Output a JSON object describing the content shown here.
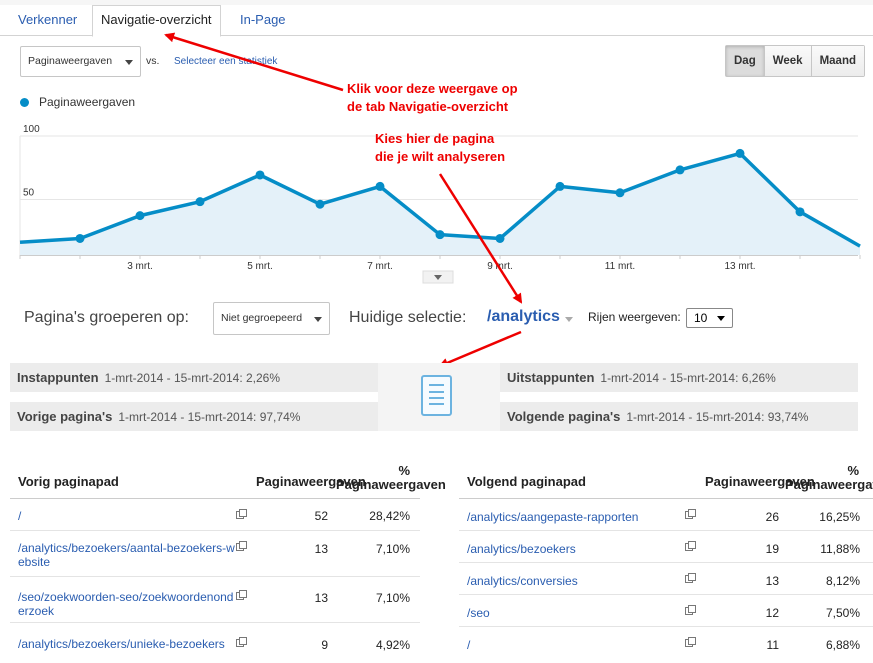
{
  "tabs": [
    {
      "label": "Verkenner"
    },
    {
      "label": "Navigatie-overzicht"
    },
    {
      "label": "In-Page"
    }
  ],
  "controls": {
    "metric_select": "Paginaweergaven",
    "vs": "vs.",
    "select_stat": "Selecteer een statistiek",
    "periods": [
      "Dag",
      "Week",
      "Maand"
    ],
    "active_period": "Dag"
  },
  "legend_label": "Paginaweergaven",
  "colors": {
    "series": "#058dc7",
    "annotation": "#e00000",
    "link": "#2a5db0"
  },
  "chart_data": {
    "type": "area",
    "x": [
      "1 mrt.",
      "2 mrt.",
      "3 mrt.",
      "4 mrt.",
      "5 mrt.",
      "6 mrt.",
      "7 mrt.",
      "8 mrt.",
      "9 mrt.",
      "10 mrt.",
      "11 mrt.",
      "12 mrt.",
      "13 mrt.",
      "14 mrt.",
      "15 mrt."
    ],
    "y_tick_labels": [
      "100",
      "50"
    ],
    "x_tick_labels": [
      "3 mrt.",
      "5 mrt.",
      "7 mrt.",
      "9 mrt.",
      "11 mrt.",
      "13 mrt."
    ],
    "series": [
      {
        "values": [
          10,
          13,
          31,
          42,
          63,
          40,
          54,
          16,
          13,
          54,
          49,
          67,
          80,
          34,
          7
        ]
      }
    ],
    "ylim": [
      0,
      100
    ],
    "grid": true
  },
  "annotations": {
    "tab_note_1": "Klik voor deze weergave op",
    "tab_note_2": "de tab Navigatie-overzicht",
    "page_note_1": "Kies hier de pagina",
    "page_note_2": "die je wilt analyseren"
  },
  "grouping": {
    "label": "Pagina's groeperen op:",
    "select": "Niet gegroepeerd",
    "current_label": "Huidige selectie:",
    "current_value": "/analytics",
    "rows_label": "Rijen weergeven:",
    "rows_value": "10"
  },
  "flow": {
    "entrances": {
      "label": "Instappunten",
      "detail": "1-mrt-2014 - 15-mrt-2014: 2,26%"
    },
    "previous": {
      "label": "Vorige pagina's",
      "detail": "1-mrt-2014 - 15-mrt-2014: 97,74%"
    },
    "exits": {
      "label": "Uitstappunten",
      "detail": "1-mrt-2014 - 15-mrt-2014: 6,26%"
    },
    "next": {
      "label": "Volgende pagina's",
      "detail": "1-mrt-2014 - 15-mrt-2014: 93,74%"
    }
  },
  "prev_table": {
    "col_path": "Vorig paginapad",
    "col_pv": "Paginaweergaven",
    "col_pct_1": "%",
    "col_pct_2": "Paginaweergaven",
    "rows": [
      {
        "path": "/",
        "pv": "52",
        "pct": "28,42%"
      },
      {
        "path": "/analytics/bezoekers/aantal-bezoekers-website",
        "pv": "13",
        "pct": "7,10%"
      },
      {
        "path": "/seo/zoekwoorden-seo/zoekwoordenonderzoek",
        "pv": "13",
        "pct": "7,10%"
      },
      {
        "path": "/analytics/bezoekers/unieke-bezoekers",
        "pv": "9",
        "pct": "4,92%"
      }
    ]
  },
  "next_table": {
    "col_path": "Volgend paginapad",
    "col_pv": "Paginaweergaven",
    "col_pct_1": "%",
    "col_pct_2": "Paginaweergaven",
    "rows": [
      {
        "path": "/analytics/aangepaste-rapporten",
        "pv": "26",
        "pct": "16,25%"
      },
      {
        "path": "/analytics/bezoekers",
        "pv": "19",
        "pct": "11,88%"
      },
      {
        "path": "/analytics/conversies",
        "pv": "13",
        "pct": "8,12%"
      },
      {
        "path": "/seo",
        "pv": "12",
        "pct": "7,50%"
      },
      {
        "path": "/",
        "pv": "11",
        "pct": "6,88%"
      }
    ]
  }
}
